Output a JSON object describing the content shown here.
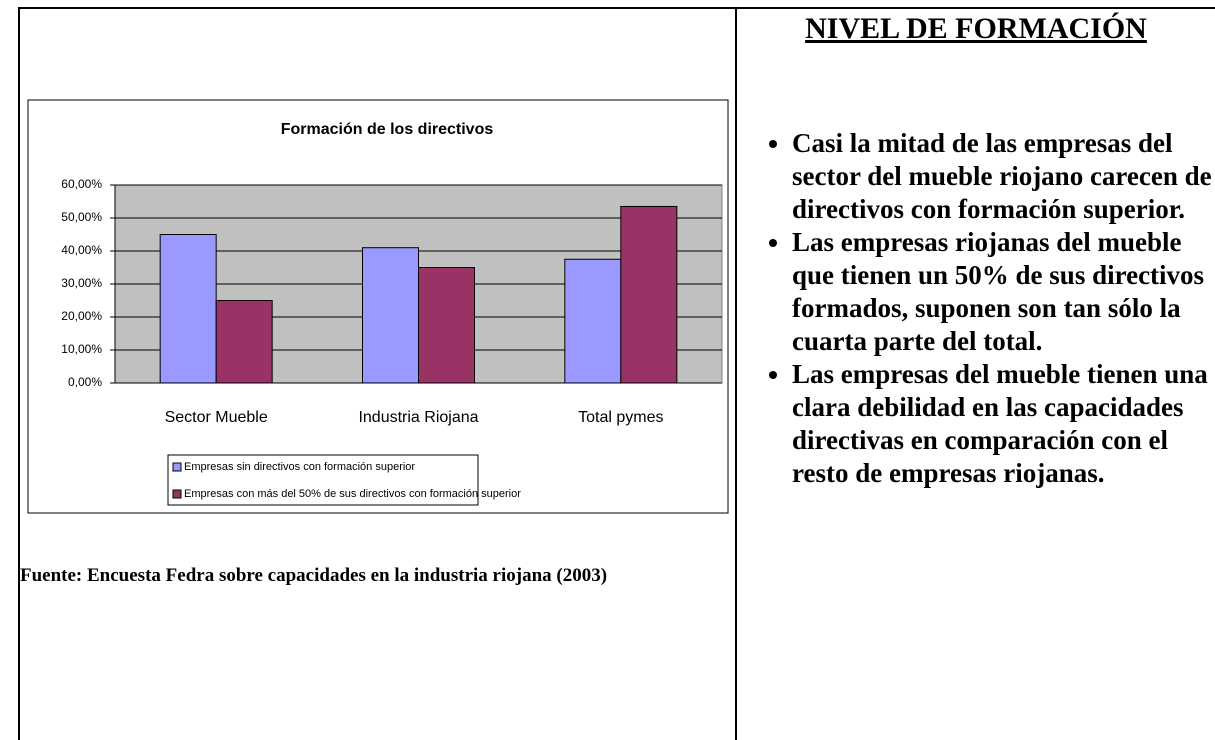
{
  "chart_data": {
    "type": "bar",
    "title": "Formación de los directivos",
    "categories": [
      "Sector Mueble",
      "Industria Riojana",
      "Total pymes"
    ],
    "series": [
      {
        "name": "Empresas sin directivos con formación superior",
        "color": "#9999ff",
        "values": [
          45,
          41,
          37.5
        ]
      },
      {
        "name": "Empresas con más del 50% de sus directivos con formación superior",
        "color": "#993366",
        "values": [
          25,
          35,
          53.5
        ]
      }
    ],
    "ylim": [
      0,
      60
    ],
    "yticks": [
      {
        "value": 0,
        "label": "0,00%"
      },
      {
        "value": 10,
        "label": "10,00%"
      },
      {
        "value": 20,
        "label": "20,00%"
      },
      {
        "value": 30,
        "label": "30,00%"
      },
      {
        "value": 40,
        "label": "40,00%"
      },
      {
        "value": 50,
        "label": "50,00%"
      },
      {
        "value": 60,
        "label": "60,00%"
      }
    ],
    "grid": true,
    "legend": "bottom"
  },
  "source": "Fuente: Encuesta Fedra sobre capacidades en la industria riojana (2003)",
  "heading": "NIVEL DE FORMACIÓN",
  "bullets": [
    "Casi la mitad de las empresas del sector del mueble riojano carecen de directivos con formación superior.",
    "Las empresas riojanas del mueble que tienen un 50% de sus directivos formados, suponen son tan sólo la cuarta parte del total.",
    "Las empresas del mueble tienen una clara debilidad en las capacidades directivas en comparación con el resto de empresas riojanas."
  ]
}
